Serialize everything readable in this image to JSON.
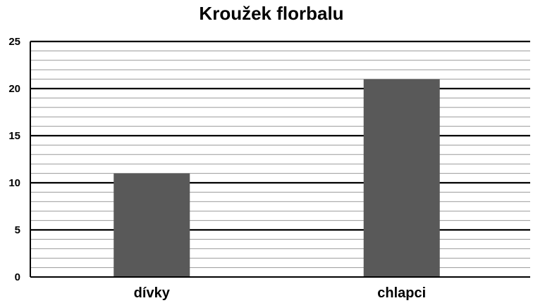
{
  "chart_data": {
    "type": "bar",
    "title": "Kroužek florbalu",
    "categories": [
      "dívky",
      "chlapci"
    ],
    "values": [
      11,
      21
    ],
    "ylim": [
      0,
      25
    ],
    "yticks": [
      0,
      5,
      10,
      15,
      20,
      25
    ],
    "minor_grid_step": 1,
    "grid": true,
    "xlabel": "",
    "ylabel": "",
    "colors": {
      "bar": "#595959",
      "major_grid": "#000000",
      "minor_grid": "#9a9a9a",
      "text": "#000000"
    }
  }
}
